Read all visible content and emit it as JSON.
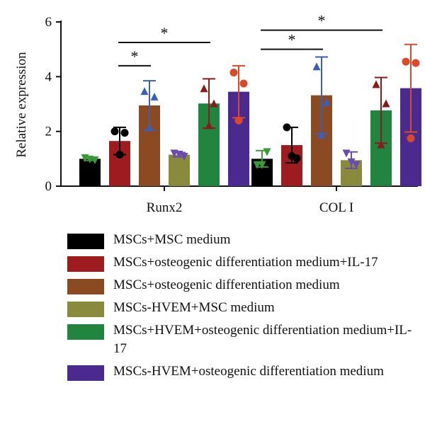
{
  "chart_data": {
    "type": "bar",
    "ylabel": "Relative expression",
    "xlabel": "",
    "ylim": [
      0,
      6
    ],
    "yticks": [
      0,
      2,
      4,
      6
    ],
    "categories": [
      "Runx2",
      "COL I"
    ],
    "series": [
      {
        "name": "MSCs+MSC medium",
        "color": "#000000",
        "values": [
          1.0,
          1.0
        ],
        "error": [
          0.06,
          0.3
        ],
        "points": [
          [
            1.05,
            0.97,
            1.0
          ],
          [
            0.8,
            1.27,
            0.8
          ]
        ],
        "marker": "triangle-down"
      },
      {
        "name": "MSCs+osteogenic differentiation medium+IL-17",
        "color": "#9e1c1f",
        "values": [
          1.65,
          1.5
        ],
        "error": [
          0.5,
          0.65
        ],
        "points": [
          [
            2.0,
            1.95,
            1.15
          ],
          [
            2.15,
            1.02,
            1.1
          ]
        ],
        "marker": "circle"
      },
      {
        "name": "MSCs+osteogenic differentiation medium",
        "color": "#8b4a21",
        "values": [
          2.95,
          3.32
        ],
        "error": [
          0.9,
          1.4
        ],
        "points": [
          [
            3.45,
            3.25,
            2.12
          ],
          [
            4.35,
            3.05,
            1.85
          ]
        ],
        "marker": "triangle"
      },
      {
        "name": "MSCs-HVEM+MSC medium",
        "color": "#8a8a3c",
        "values": [
          1.15,
          0.95
        ],
        "error": [
          0.08,
          0.3
        ],
        "points": [
          [
            1.22,
            1.1,
            1.18
          ],
          [
            1.22,
            0.8,
            0.9
          ]
        ],
        "marker": "triangle-down"
      },
      {
        "name": "MSCs+HVEM+osteogenic differentiation medium+IL-17",
        "color": "#21843f",
        "values": [
          3.02,
          2.77
        ],
        "error": [
          0.9,
          1.2
        ],
        "points": [
          [
            3.55,
            3.0,
            2.2
          ],
          [
            3.7,
            3.0,
            1.5
          ]
        ],
        "marker": "triangle"
      },
      {
        "name": "MSCs-HVEM+osteogenic differentiation medium",
        "color": "#4a2a8e",
        "values": [
          3.45,
          3.58
        ],
        "error": [
          0.95,
          1.6
        ],
        "points": [
          [
            4.15,
            3.75,
            2.4
          ],
          [
            4.55,
            4.5,
            1.75
          ]
        ],
        "marker": "circle"
      }
    ],
    "point_colors": [
      "#3a9a3a",
      "#000000",
      "#3a5fb5",
      "#6a4ab0",
      "#8b1a1a",
      "#d94a2a"
    ],
    "significance": [
      {
        "category": 0,
        "from_series": 1,
        "to_series": 2,
        "y": 4.4,
        "label": "*"
      },
      {
        "category": 0,
        "from_series": 1,
        "to_series": 4,
        "y": 5.25,
        "label": "*"
      },
      {
        "category": 1,
        "from_series": 0,
        "to_series": 2,
        "y": 5.0,
        "label": "*"
      },
      {
        "category": 1,
        "from_series": 0,
        "to_series": 4,
        "y": 5.7,
        "label": "*"
      }
    ]
  }
}
